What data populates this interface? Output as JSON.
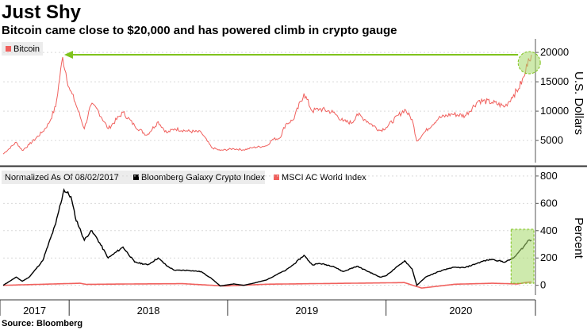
{
  "title": "Just Shy",
  "subtitle": "Bitcoin came close to $20,000 and has powered climb in crypto gauge",
  "source": "Source: Bloomberg",
  "colors": {
    "bitcoin": "#f0605d",
    "galaxy": "#000000",
    "msci": "#f0605d",
    "arrow": "#7fc31c",
    "highlight": "#a6d96a"
  },
  "chart_data": [
    {
      "type": "line",
      "legend": "Bitcoin",
      "ylabel": "U.S. Dollars",
      "yticks": [
        5000,
        10000,
        15000,
        20000
      ],
      "ylim": [
        1500,
        21500
      ],
      "xlim": [
        "2017-08-02",
        "2020-12-01"
      ],
      "series": [
        {
          "name": "Bitcoin",
          "x": [
            "2017-08-02",
            "2017-09-01",
            "2017-09-15",
            "2017-10-01",
            "2017-11-01",
            "2017-11-15",
            "2017-12-01",
            "2017-12-17",
            "2018-01-01",
            "2018-01-15",
            "2018-02-05",
            "2018-02-20",
            "2018-03-05",
            "2018-04-01",
            "2018-05-05",
            "2018-06-01",
            "2018-06-29",
            "2018-07-25",
            "2018-08-14",
            "2018-09-01",
            "2018-10-01",
            "2018-11-01",
            "2018-11-25",
            "2018-12-15",
            "2019-01-15",
            "2019-02-07",
            "2019-03-01",
            "2019-04-01",
            "2019-04-15",
            "2019-05-01",
            "2019-05-15",
            "2019-06-01",
            "2019-06-26",
            "2019-07-15",
            "2019-08-01",
            "2019-09-01",
            "2019-09-24",
            "2019-10-15",
            "2019-10-26",
            "2019-11-15",
            "2019-12-18",
            "2020-01-01",
            "2020-02-13",
            "2020-03-01",
            "2020-03-12",
            "2020-04-01",
            "2020-05-01",
            "2020-06-01",
            "2020-07-01",
            "2020-08-01",
            "2020-09-01",
            "2020-10-01",
            "2020-10-21",
            "2020-11-01",
            "2020-11-15",
            "2020-11-24",
            "2020-12-01"
          ],
          "y": [
            2700,
            4700,
            3300,
            4300,
            6500,
            7900,
            10800,
            19200,
            14000,
            11500,
            7000,
            11000,
            10500,
            7000,
            9800,
            7500,
            5900,
            8200,
            6300,
            7000,
            6600,
            6400,
            3800,
            3300,
            3600,
            3400,
            3800,
            4100,
            5200,
            5400,
            7800,
            8500,
            13000,
            10000,
            10400,
            9800,
            8300,
            8000,
            9500,
            8500,
            6700,
            7200,
            10300,
            8600,
            4900,
            6600,
            8800,
            9500,
            9200,
            11800,
            11500,
            10800,
            12800,
            13800,
            16000,
            19000,
            19600
          ]
        }
      ]
    },
    {
      "type": "line",
      "legend_prefix": "Normalized As Of 08/02/2017",
      "ylabel": "Percent",
      "yticks": [
        0,
        200,
        400,
        600,
        800
      ],
      "ylim": [
        -60,
        840
      ],
      "xlim": [
        "2017-08-02",
        "2020-12-01"
      ],
      "x_ticks": [
        "2017",
        "2018",
        "2019",
        "2020"
      ],
      "series": [
        {
          "name": "Bloomberg Galaxy Crypto Index",
          "x": [
            "2017-08-02",
            "2017-09-01",
            "2017-09-15",
            "2017-10-01",
            "2017-11-01",
            "2017-12-01",
            "2017-12-20",
            "2018-01-05",
            "2018-01-15",
            "2018-02-05",
            "2018-02-20",
            "2018-03-05",
            "2018-04-01",
            "2018-05-05",
            "2018-06-01",
            "2018-07-01",
            "2018-07-25",
            "2018-08-15",
            "2018-09-01",
            "2018-10-01",
            "2018-11-01",
            "2018-11-25",
            "2018-12-15",
            "2019-01-15",
            "2019-02-07",
            "2019-03-01",
            "2019-04-01",
            "2019-05-01",
            "2019-05-15",
            "2019-06-01",
            "2019-06-26",
            "2019-07-15",
            "2019-08-01",
            "2019-09-01",
            "2019-09-24",
            "2019-10-26",
            "2019-11-15",
            "2019-12-18",
            "2020-01-01",
            "2020-02-13",
            "2020-03-01",
            "2020-03-12",
            "2020-04-01",
            "2020-05-01",
            "2020-06-01",
            "2020-07-01",
            "2020-08-15",
            "2020-09-01",
            "2020-10-01",
            "2020-10-21",
            "2020-11-01",
            "2020-11-15",
            "2020-11-24",
            "2020-12-01"
          ],
          "y": [
            0,
            60,
            30,
            60,
            180,
            450,
            700,
            650,
            500,
            330,
            400,
            350,
            200,
            280,
            170,
            150,
            200,
            140,
            110,
            110,
            100,
            50,
            -5,
            10,
            0,
            15,
            40,
            90,
            110,
            150,
            220,
            150,
            160,
            140,
            100,
            140,
            110,
            60,
            70,
            180,
            120,
            0,
            60,
            100,
            130,
            130,
            180,
            190,
            170,
            200,
            240,
            290,
            330,
            330
          ]
        },
        {
          "name": "MSCI AC World Index",
          "x": [
            "2017-08-02",
            "2018-01-26",
            "2018-02-09",
            "2018-06-01",
            "2018-09-20",
            "2018-12-24",
            "2019-04-01",
            "2019-07-15",
            "2019-12-31",
            "2020-02-12",
            "2020-03-23",
            "2020-06-08",
            "2020-09-02",
            "2020-10-30",
            "2020-11-20",
            "2020-12-01"
          ],
          "y": [
            0,
            15,
            7,
            10,
            12,
            -5,
            8,
            12,
            18,
            20,
            -20,
            8,
            15,
            10,
            22,
            25
          ]
        }
      ]
    }
  ]
}
